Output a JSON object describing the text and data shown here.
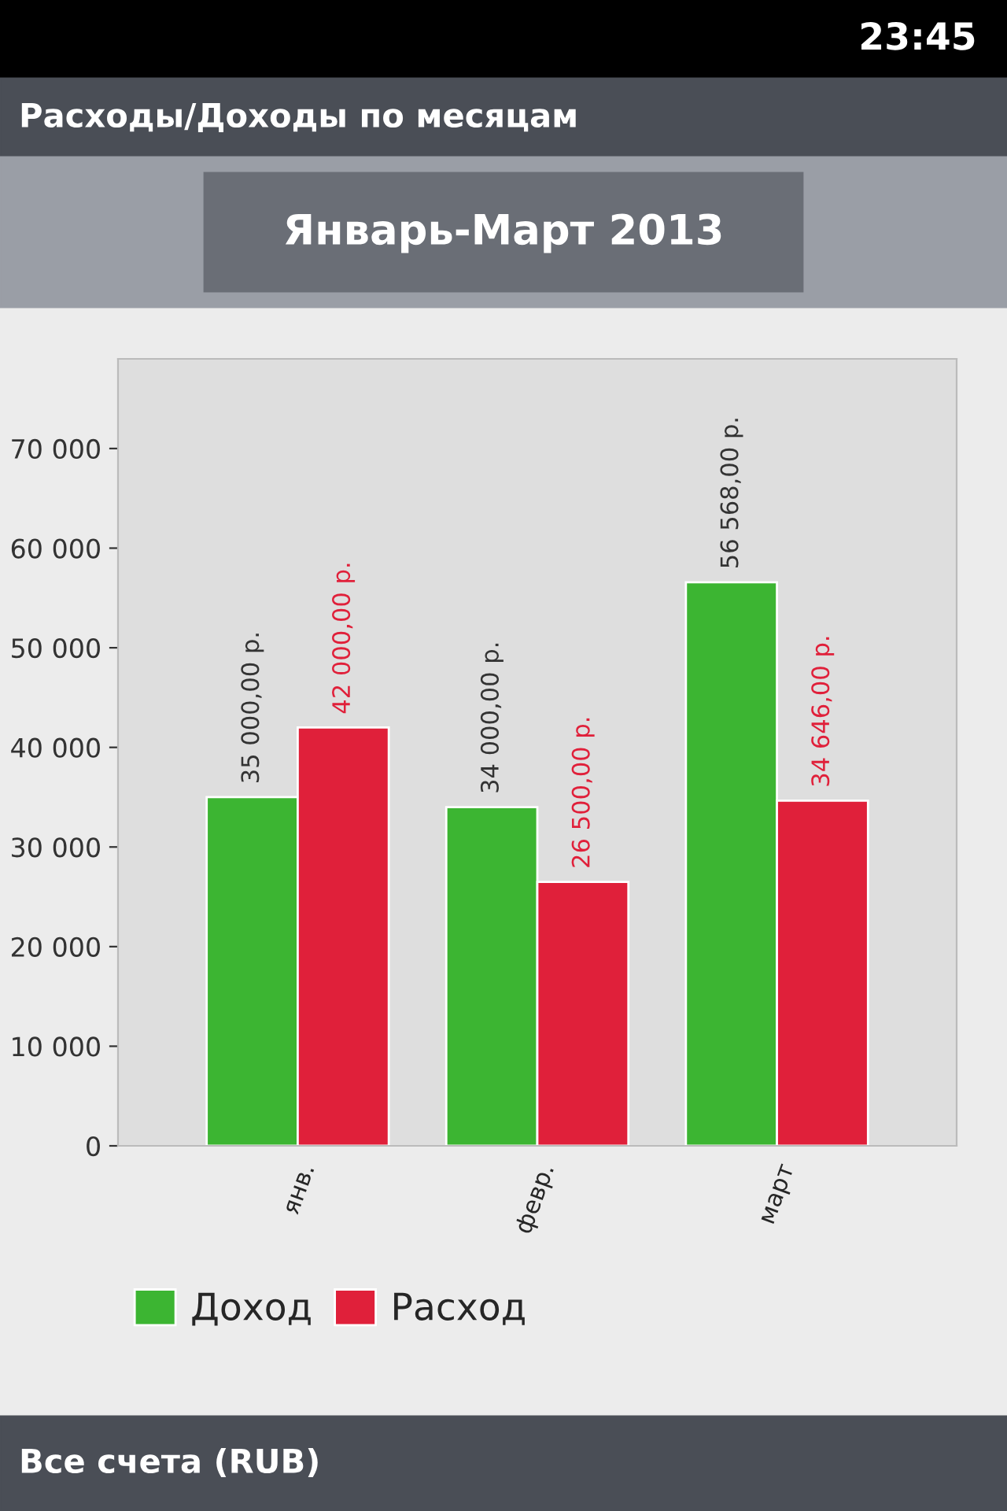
{
  "chart_data": {
    "type": "bar",
    "title": "Расходы/Доходы по месяцам",
    "subtitle": "Январь-Март 2013",
    "categories": [
      "янв.",
      "февр.",
      "март"
    ],
    "series": [
      {
        "name": "Доход",
        "color": "#3cb532",
        "values": [
          35000,
          34000,
          56568
        ],
        "value_labels": [
          "35 000,00 р.",
          "34 000,00 р.",
          "56 568,00 р."
        ]
      },
      {
        "name": "Расход",
        "color": "#e0203a",
        "values": [
          42000,
          26500,
          34646
        ],
        "value_labels": [
          "42 000,00 р.",
          "26 500,00 р.",
          "34 646,00 р."
        ]
      }
    ],
    "ylim": [
      0,
      79000
    ],
    "yticks": [
      0,
      {
        "value": 10000,
        "label": "10 000"
      },
      {
        "value": 20000,
        "label": "20 000"
      },
      {
        "value": 30000,
        "label": "30 000"
      },
      {
        "value": 40000,
        "label": "40 000"
      },
      {
        "value": 50000,
        "label": "50 000"
      },
      {
        "value": 60000,
        "label": "60 000"
      },
      {
        "value": 70000,
        "label": "70 000"
      }
    ],
    "grid": false,
    "legend": "bottom left",
    "annotations": [
      "23:45",
      "Все счета (RUB)"
    ]
  }
}
